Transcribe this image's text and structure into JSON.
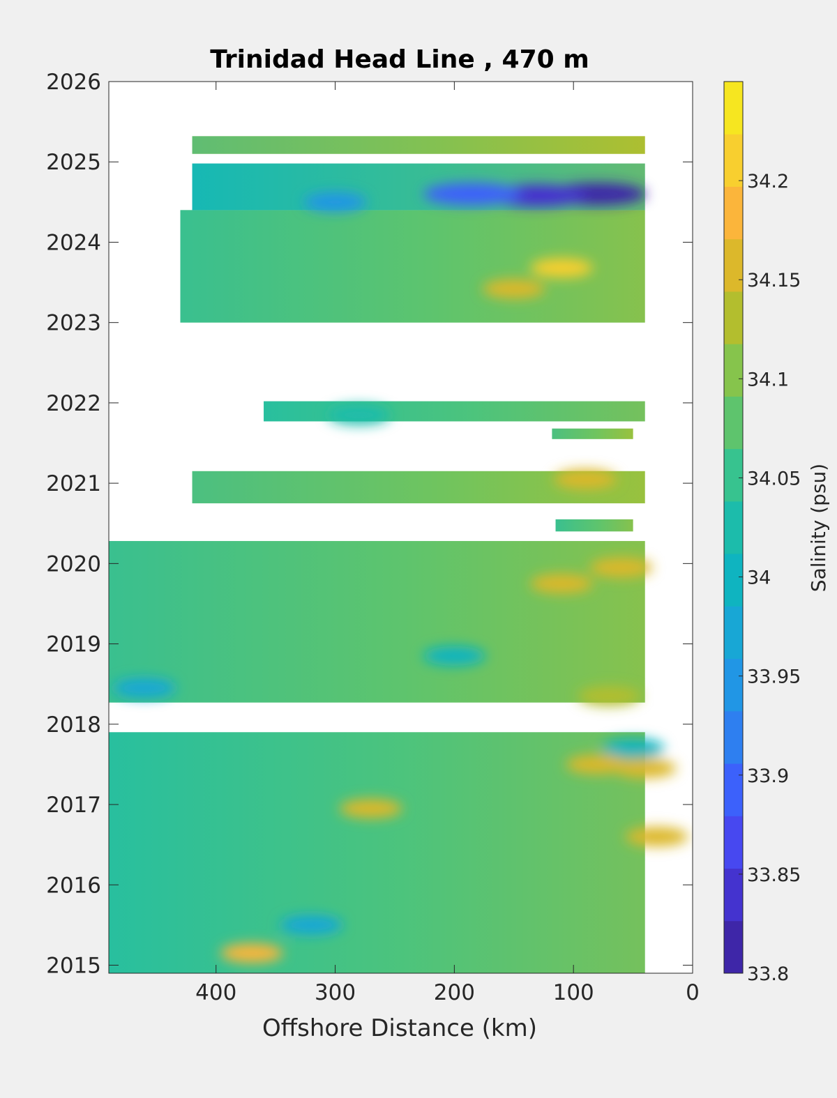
{
  "chart_data": {
    "type": "heatmap",
    "title": "Trinidad Head Line , 470 m",
    "xlabel": "Offshore Distance (km)",
    "ylabel": "",
    "x_direction": "reversed",
    "xlim": [
      0,
      490
    ],
    "ylim": [
      2014.9,
      2026
    ],
    "x_ticks": [
      "400",
      "300",
      "200",
      "100",
      "0"
    ],
    "x_tick_values": [
      400,
      300,
      200,
      100,
      0
    ],
    "y_ticks": [
      "2015",
      "2016",
      "2017",
      "2018",
      "2019",
      "2020",
      "2021",
      "2022",
      "2023",
      "2024",
      "2025",
      "2026"
    ],
    "y_tick_values": [
      2015,
      2016,
      2017,
      2018,
      2019,
      2020,
      2021,
      2022,
      2023,
      2024,
      2025,
      2026
    ],
    "grid": false,
    "colorbar": {
      "label": "Salinity (psu)",
      "position": "right",
      "range": [
        33.8,
        34.25
      ],
      "tick_labels": [
        "33.8",
        "33.85",
        "33.9",
        "33.95",
        "34",
        "34.05",
        "34.1",
        "34.15",
        "34.2"
      ],
      "tick_values": [
        33.8,
        33.85,
        33.9,
        33.95,
        34.0,
        34.05,
        34.1,
        34.15,
        34.2
      ],
      "colors": [
        "#3e26a8",
        "#4433cf",
        "#4748f0",
        "#3c61fb",
        "#2e7ff0",
        "#2196e5",
        "#18a7d5",
        "#0fb4c0",
        "#1cbcab",
        "#37c38f",
        "#5ec46d",
        "#86c44c",
        "#b3be2e",
        "#dcb82b",
        "#fbb53b",
        "#f8cf2f",
        "#f6e620"
      ]
    },
    "data_bands": [
      {
        "y0": 2014.9,
        "y1": 2017.9,
        "x_far": 490,
        "x_near": 40,
        "mean": 34.06
      },
      {
        "y0": 2018.27,
        "y1": 2020.28,
        "x_far": 490,
        "x_near": 40,
        "mean": 34.08
      },
      {
        "y0": 2020.4,
        "y1": 2020.55,
        "x_far": 115,
        "x_near": 50,
        "mean": 34.07
      },
      {
        "y0": 2020.75,
        "y1": 2021.15,
        "x_far": 420,
        "x_near": 40,
        "mean": 34.1
      },
      {
        "y0": 2021.55,
        "y1": 2021.68,
        "x_far": 118,
        "x_near": 50,
        "mean": 34.1
      },
      {
        "y0": 2021.77,
        "y1": 2022.02,
        "x_far": 360,
        "x_near": 40,
        "mean": 34.06
      },
      {
        "y0": 2023.0,
        "y1": 2024.4,
        "x_far": 430,
        "x_near": 40,
        "mean": 34.08
      },
      {
        "y0": 2024.4,
        "y1": 2024.98,
        "x_far": 420,
        "x_near": 40,
        "mean": 34.0
      },
      {
        "y0": 2025.1,
        "y1": 2025.32,
        "x_far": 420,
        "x_near": 40,
        "mean": 34.12
      }
    ],
    "features": [
      {
        "x": 80,
        "y": 2024.6,
        "value": 33.82
      },
      {
        "x": 130,
        "y": 2024.58,
        "value": 33.83
      },
      {
        "x": 185,
        "y": 2024.6,
        "value": 33.88
      },
      {
        "x": 300,
        "y": 2024.5,
        "value": 33.95
      },
      {
        "x": 110,
        "y": 2023.68,
        "value": 34.2
      },
      {
        "x": 150,
        "y": 2023.42,
        "value": 34.15
      },
      {
        "x": 90,
        "y": 2021.05,
        "value": 34.17
      },
      {
        "x": 60,
        "y": 2019.95,
        "value": 34.16
      },
      {
        "x": 110,
        "y": 2019.75,
        "value": 34.15
      },
      {
        "x": 70,
        "y": 2018.35,
        "value": 34.14
      },
      {
        "x": 40,
        "y": 2017.45,
        "value": 34.17
      },
      {
        "x": 80,
        "y": 2017.5,
        "value": 34.15
      },
      {
        "x": 270,
        "y": 2016.95,
        "value": 34.15
      },
      {
        "x": 30,
        "y": 2016.6,
        "value": 34.16
      },
      {
        "x": 370,
        "y": 2015.15,
        "value": 34.18
      },
      {
        "x": 320,
        "y": 2015.5,
        "value": 33.96
      },
      {
        "x": 200,
        "y": 2018.85,
        "value": 34.0
      },
      {
        "x": 280,
        "y": 2021.85,
        "value": 34.02
      },
      {
        "x": 50,
        "y": 2017.7,
        "value": 34.0
      },
      {
        "x": 460,
        "y": 2018.45,
        "value": 33.98
      }
    ]
  }
}
